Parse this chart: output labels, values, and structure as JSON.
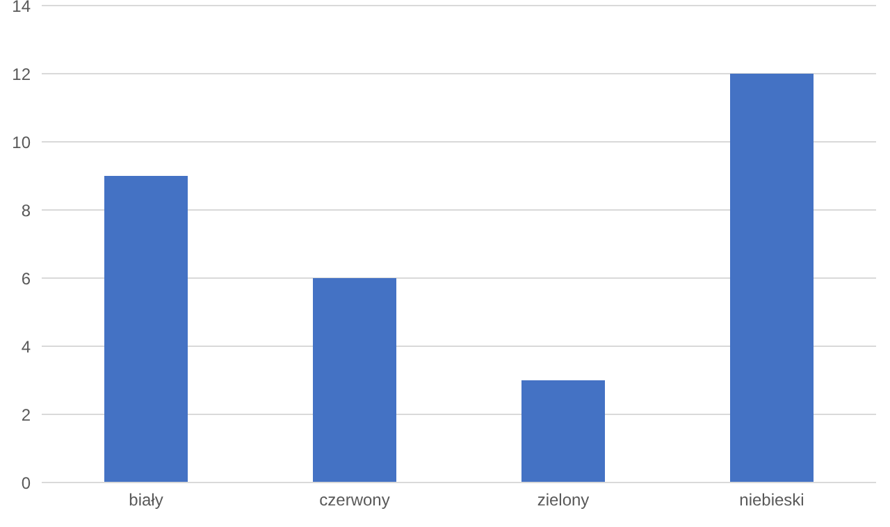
{
  "chart_data": {
    "type": "bar",
    "categories": [
      "biały",
      "czerwony",
      "zielony",
      "niebieski"
    ],
    "values": [
      9,
      6,
      3,
      12
    ],
    "color": "#4472c4",
    "ylim": [
      0,
      14
    ],
    "yticks": [
      0,
      2,
      4,
      6,
      8,
      10,
      12,
      14
    ],
    "grid": "y"
  }
}
